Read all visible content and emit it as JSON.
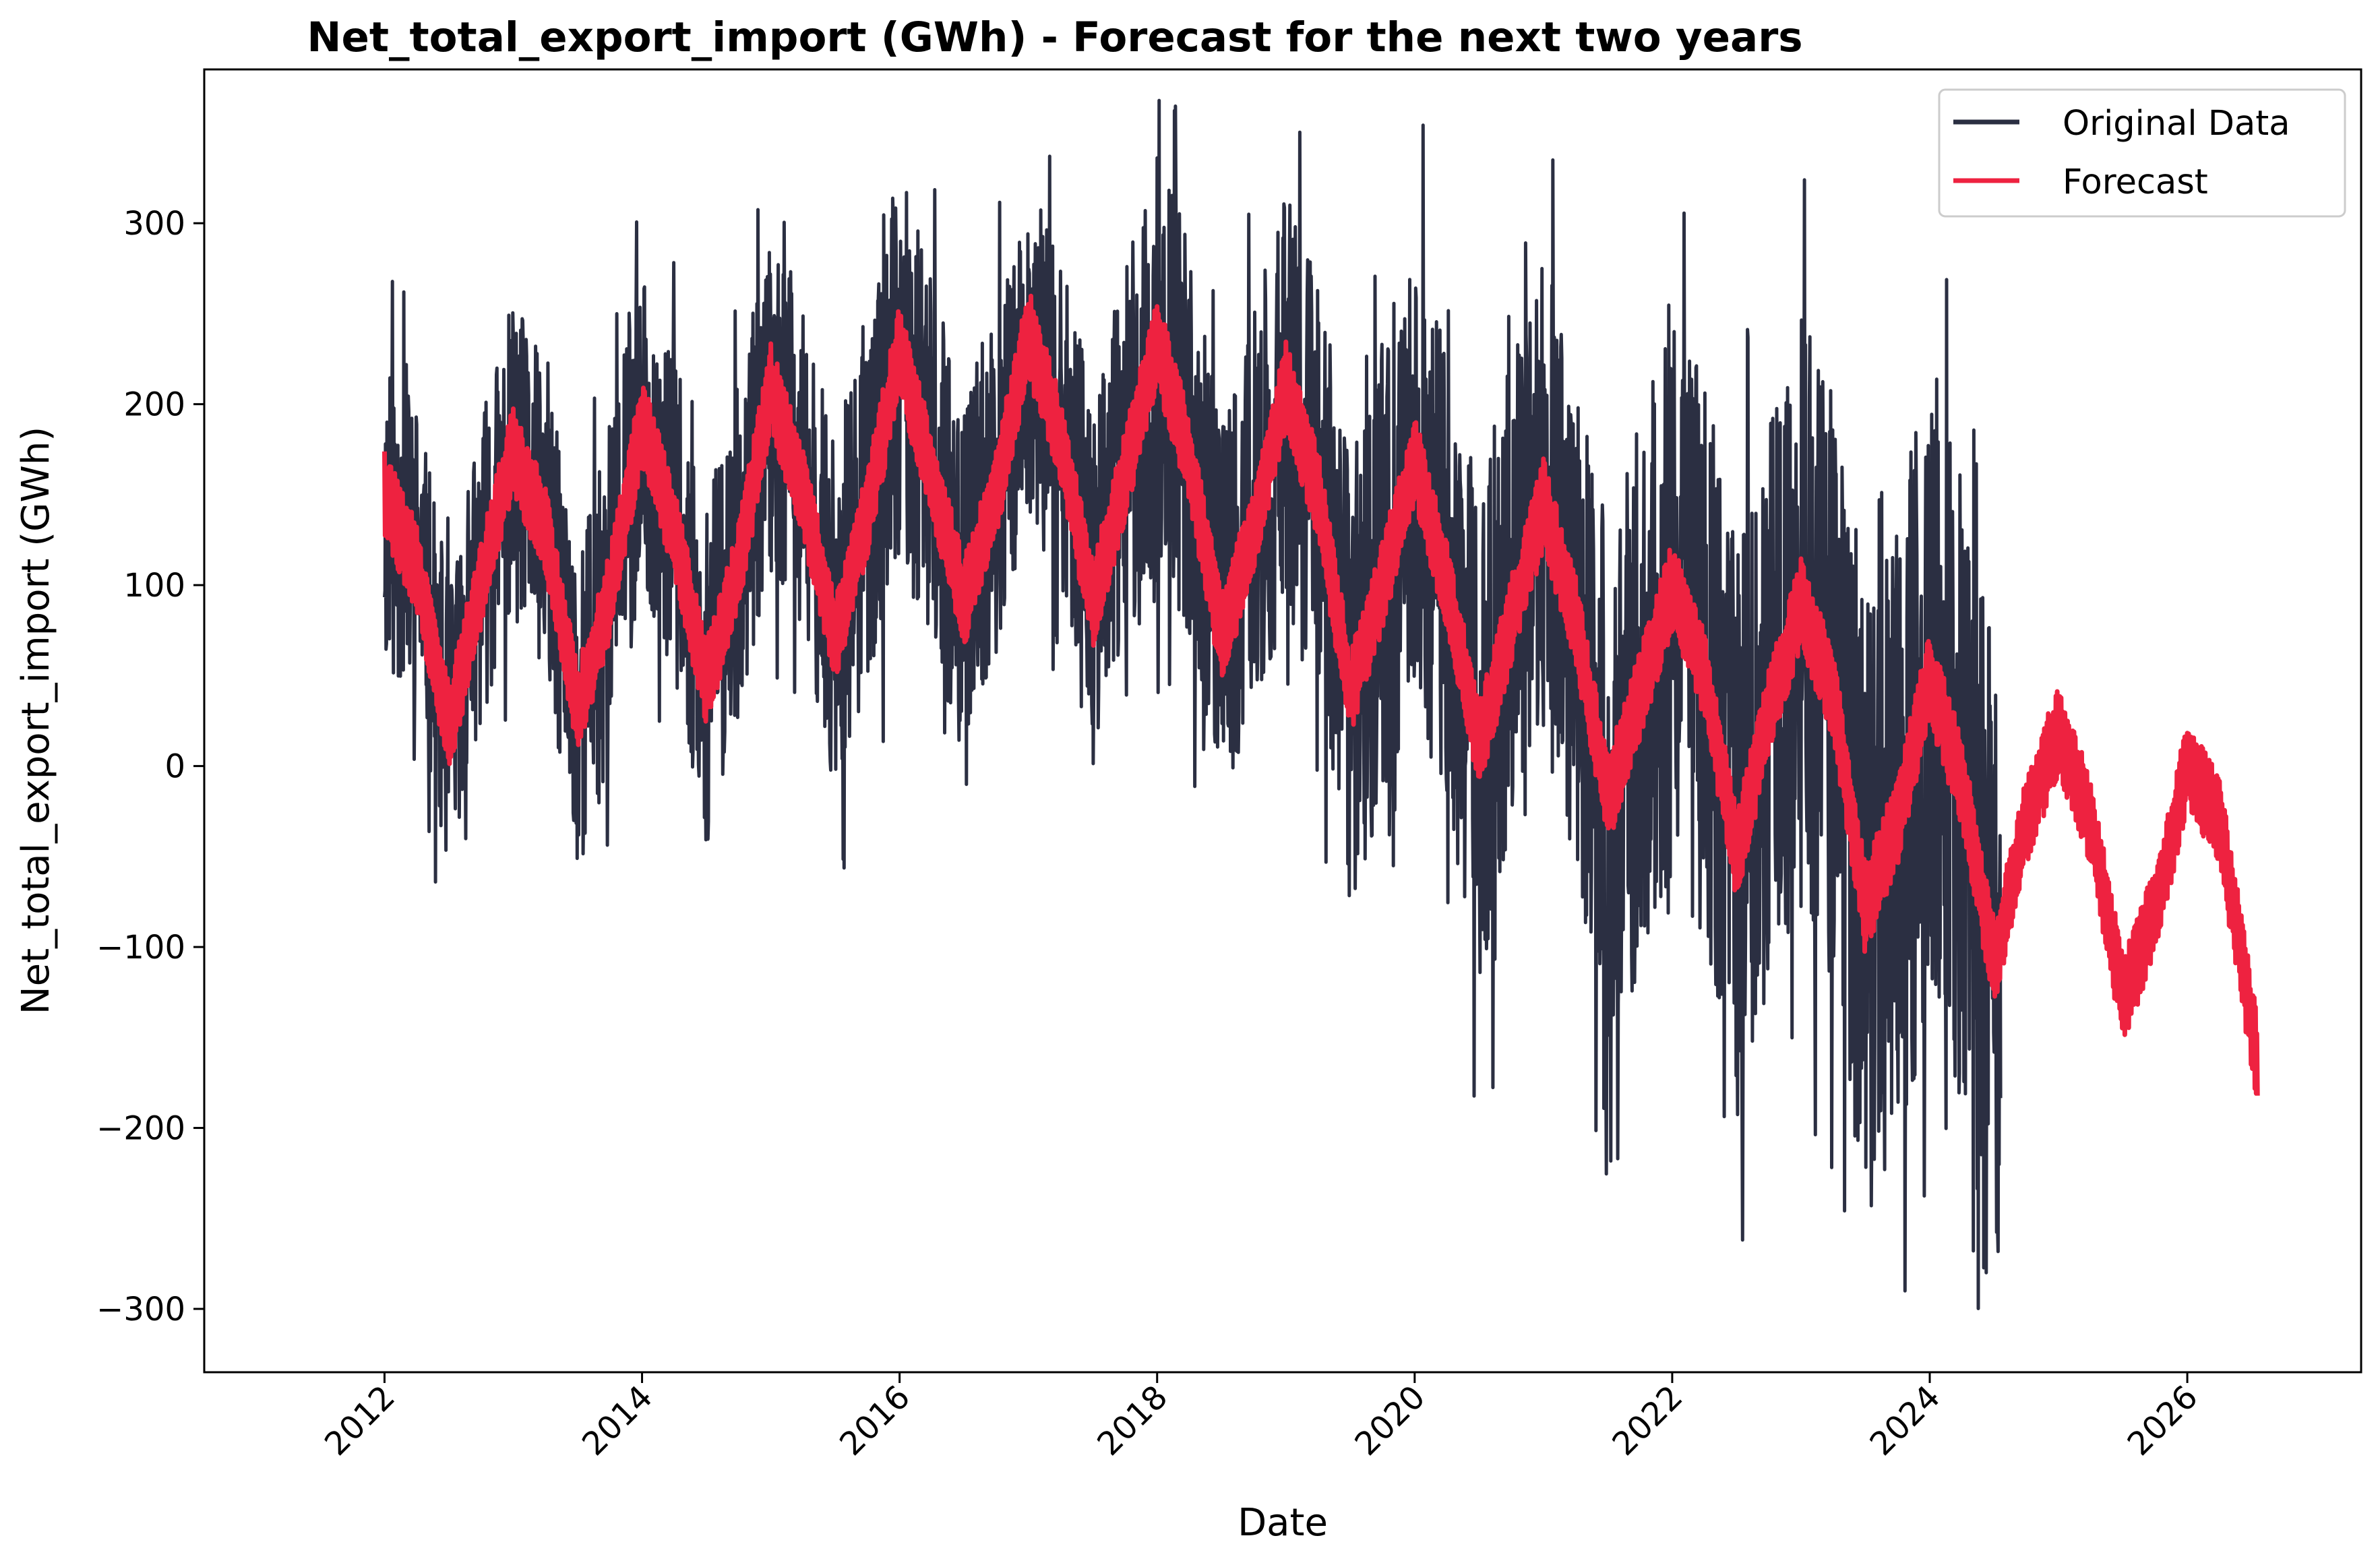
{
  "chart_data": {
    "type": "line",
    "title": "Net_total_export_import (GWh) - Forecast for the next two years",
    "xlabel": "Date",
    "ylabel": "Net_total_export_import (GWh)",
    "xlim": [
      2010.6,
      2027.35
    ],
    "ylim": [
      -335,
      385
    ],
    "x_ticks": [
      2012,
      2014,
      2016,
      2018,
      2020,
      2022,
      2024,
      2026
    ],
    "x_tick_labels": [
      "2012",
      "2014",
      "2016",
      "2018",
      "2020",
      "2022",
      "2024",
      "2026"
    ],
    "y_ticks": [
      -300,
      -200,
      -100,
      0,
      100,
      200,
      300
    ],
    "y_tick_labels": [
      "−300",
      "−200",
      "−100",
      "0",
      "100",
      "200",
      "300"
    ],
    "grid": false,
    "legend_position": "top-right",
    "series": [
      {
        "name": "Original Data",
        "color": "#2b2f42",
        "x": [
          2012.0,
          2012.25,
          2012.5,
          2012.75,
          2013.0,
          2013.25,
          2013.5,
          2013.75,
          2014.0,
          2014.25,
          2014.5,
          2014.75,
          2015.0,
          2015.25,
          2015.5,
          2015.75,
          2016.0,
          2016.25,
          2016.5,
          2016.75,
          2017.0,
          2017.25,
          2017.5,
          2017.75,
          2018.0,
          2018.25,
          2018.5,
          2018.75,
          2019.0,
          2019.25,
          2019.5,
          2019.75,
          2020.0,
          2020.25,
          2020.5,
          2020.75,
          2021.0,
          2021.25,
          2021.5,
          2021.75,
          2022.0,
          2022.25,
          2022.5,
          2022.75,
          2023.0,
          2023.25,
          2023.5,
          2023.75,
          2024.0,
          2024.25,
          2024.55
        ],
        "y": [
          140,
          120,
          20,
          110,
          170,
          135,
          30,
          100,
          180,
          140,
          50,
          120,
          200,
          160,
          80,
          150,
          220,
          170,
          100,
          160,
          230,
          190,
          110,
          170,
          220,
          180,
          80,
          140,
          200,
          160,
          40,
          110,
          160,
          110,
          10,
          90,
          140,
          90,
          -20,
          40,
          90,
          60,
          -40,
          40,
          90,
          40,
          -80,
          -30,
          40,
          -10,
          -110
        ],
        "band": [
          90,
          85,
          80,
          85,
          90,
          85,
          90,
          95,
          90,
          90,
          95,
          95,
          95,
          90,
          100,
          105,
          110,
          100,
          100,
          100,
          95,
          90,
          100,
          105,
          120,
          110,
          110,
          115,
          120,
          110,
          130,
          130,
          130,
          130,
          140,
          140,
          140,
          140,
          150,
          150,
          160,
          155,
          160,
          160,
          170,
          170,
          180,
          180,
          180,
          180,
          170
        ]
      },
      {
        "name": "Forecast",
        "color": "#ee2240",
        "x": [
          2012.0,
          2012.25,
          2012.5,
          2012.75,
          2013.0,
          2013.25,
          2013.5,
          2013.75,
          2014.0,
          2014.25,
          2014.5,
          2014.75,
          2015.0,
          2015.25,
          2015.5,
          2015.75,
          2016.0,
          2016.25,
          2016.5,
          2016.75,
          2017.0,
          2017.25,
          2017.5,
          2017.75,
          2018.0,
          2018.25,
          2018.5,
          2018.75,
          2019.0,
          2019.25,
          2019.5,
          2019.75,
          2020.0,
          2020.25,
          2020.5,
          2020.75,
          2021.0,
          2021.25,
          2021.5,
          2021.75,
          2022.0,
          2022.25,
          2022.5,
          2022.75,
          2023.0,
          2023.25,
          2023.5,
          2023.75,
          2024.0,
          2024.25,
          2024.5,
          2024.75,
          2025.0,
          2025.25,
          2025.5,
          2025.75,
          2026.0,
          2026.25,
          2026.55
        ],
        "y": [
          150,
          110,
          20,
          100,
          175,
          130,
          30,
          95,
          190,
          130,
          45,
          110,
          210,
          150,
          70,
          140,
          230,
          160,
          90,
          150,
          240,
          180,
          90,
          160,
          235,
          170,
          70,
          130,
          210,
          150,
          40,
          100,
          170,
          100,
          10,
          80,
          145,
          80,
          -20,
          40,
          100,
          50,
          -50,
          30,
          90,
          40,
          -80,
          -30,
          50,
          -10,
          -110,
          -30,
          20,
          -30,
          -130,
          -80,
          0,
          -30,
          -165
        ],
        "band": [
          25,
          25,
          25,
          25,
          25,
          25,
          25,
          25,
          25,
          25,
          25,
          25,
          25,
          25,
          25,
          25,
          25,
          25,
          25,
          25,
          25,
          25,
          25,
          25,
          25,
          25,
          25,
          25,
          25,
          25,
          25,
          25,
          25,
          25,
          25,
          25,
          25,
          25,
          25,
          25,
          25,
          25,
          25,
          25,
          25,
          25,
          25,
          25,
          25,
          25,
          25,
          25,
          25,
          25,
          25,
          25,
          25,
          25,
          25
        ]
      }
    ]
  }
}
